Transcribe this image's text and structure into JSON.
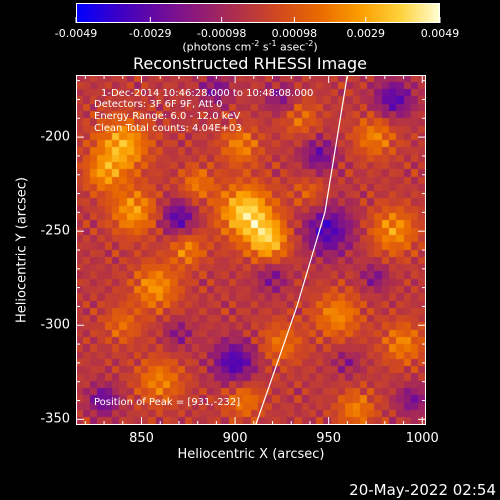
{
  "colorbar": {
    "stops": [
      "#0000ff",
      "#3b00c8",
      "#6a0aa0",
      "#8e1a78",
      "#b0304a",
      "#d24a1e",
      "#ea6a00",
      "#fb9e00",
      "#ffd23c",
      "#ffffd8"
    ],
    "tick_labels": [
      "-0.0049",
      "-0.0029",
      "-0.00098",
      "0.00098",
      "0.0029",
      "0.0049"
    ],
    "tick_values": [
      -0.0049,
      -0.0029,
      -0.00098,
      0.00098,
      0.0029,
      0.0049
    ],
    "unit_html": "(photons cm<sup>-2</sup> s<sup>-1</sup> asec<sup>-2</sup>)"
  },
  "chart_data": {
    "type": "heatmap",
    "title": "Reconstructed RHESSI Image",
    "xlabel": "Heliocentric X (arcsec)",
    "ylabel": "Heliocentric Y (arcsec)",
    "xlim": [
      815,
      1002
    ],
    "ylim": [
      -353,
      -167
    ],
    "xticks": [
      850,
      900,
      950,
      1000
    ],
    "yticks": [
      -200,
      -250,
      -300,
      -350
    ],
    "xtick_labels": [
      "850",
      "900",
      "950",
      "1000"
    ],
    "ytick_labels": [
      "-200",
      "-250",
      "-300",
      "-350"
    ],
    "colorscale_range": [
      -0.0049,
      0.0049
    ],
    "peak": [
      931,
      -232
    ],
    "limb_line": [
      [
        911,
        -353
      ],
      [
        933,
        -290
      ],
      [
        948,
        -240
      ],
      [
        960,
        -167
      ]
    ],
    "hotspots": [
      {
        "x": 906,
        "y": -240,
        "amp": 1.0,
        "r": 14
      },
      {
        "x": 918,
        "y": -255,
        "amp": 0.85,
        "r": 11
      },
      {
        "x": 840,
        "y": -205,
        "amp": 0.8,
        "r": 14
      },
      {
        "x": 846,
        "y": -240,
        "amp": 0.7,
        "r": 12
      },
      {
        "x": 830,
        "y": -220,
        "amp": 0.55,
        "r": 10
      },
      {
        "x": 858,
        "y": -280,
        "amp": 0.65,
        "r": 12
      },
      {
        "x": 875,
        "y": -260,
        "amp": 0.55,
        "r": 9
      },
      {
        "x": 903,
        "y": -205,
        "amp": 0.55,
        "r": 10
      },
      {
        "x": 935,
        "y": -190,
        "amp": 0.4,
        "r": 10
      },
      {
        "x": 975,
        "y": -200,
        "amp": 0.55,
        "r": 11
      },
      {
        "x": 985,
        "y": -250,
        "amp": 0.65,
        "r": 12
      },
      {
        "x": 955,
        "y": -295,
        "amp": 0.6,
        "r": 12
      },
      {
        "x": 990,
        "y": -310,
        "amp": 0.55,
        "r": 11
      },
      {
        "x": 925,
        "y": -310,
        "amp": 0.45,
        "r": 11
      },
      {
        "x": 860,
        "y": -330,
        "amp": 0.55,
        "r": 12
      },
      {
        "x": 905,
        "y": -340,
        "amp": 0.5,
        "r": 10
      },
      {
        "x": 965,
        "y": -345,
        "amp": 0.55,
        "r": 10
      },
      {
        "x": 880,
        "y": -225,
        "amp": 0.5,
        "r": 9
      },
      {
        "x": 940,
        "y": -230,
        "amp": 0.35,
        "r": 9
      },
      {
        "x": 840,
        "y": -300,
        "amp": 0.4,
        "r": 10
      }
    ],
    "coldspots": [
      {
        "x": 870,
        "y": -243,
        "amp": 0.8,
        "r": 9
      },
      {
        "x": 900,
        "y": -320,
        "amp": 0.9,
        "r": 11
      },
      {
        "x": 950,
        "y": -250,
        "amp": 0.85,
        "r": 13
      },
      {
        "x": 945,
        "y": -210,
        "amp": 0.65,
        "r": 9
      },
      {
        "x": 985,
        "y": -180,
        "amp": 0.8,
        "r": 10
      },
      {
        "x": 830,
        "y": -340,
        "amp": 0.7,
        "r": 8
      },
      {
        "x": 925,
        "y": -180,
        "amp": 0.5,
        "r": 8
      },
      {
        "x": 890,
        "y": -175,
        "amp": 0.55,
        "r": 8
      },
      {
        "x": 920,
        "y": -275,
        "amp": 0.5,
        "r": 8
      },
      {
        "x": 975,
        "y": -275,
        "amp": 0.5,
        "r": 7
      },
      {
        "x": 995,
        "y": -340,
        "amp": 0.55,
        "r": 8
      },
      {
        "x": 870,
        "y": -305,
        "amp": 0.45,
        "r": 7
      },
      {
        "x": 960,
        "y": -320,
        "amp": 0.4,
        "r": 7
      }
    ]
  },
  "annotations": {
    "time_range": "1-Dec-2014 10:46:28.000 to 10:48:08.000",
    "detectors": "Detectors: 3F 6F 9F, Att 0",
    "energy": "Energy Range: 6.0 - 12.0 keV",
    "clean": "Clean     Total counts: 4.04E+03",
    "peak": "Position of Peak = [931,-232]"
  },
  "timestamp": "20-May-2022 02:54"
}
